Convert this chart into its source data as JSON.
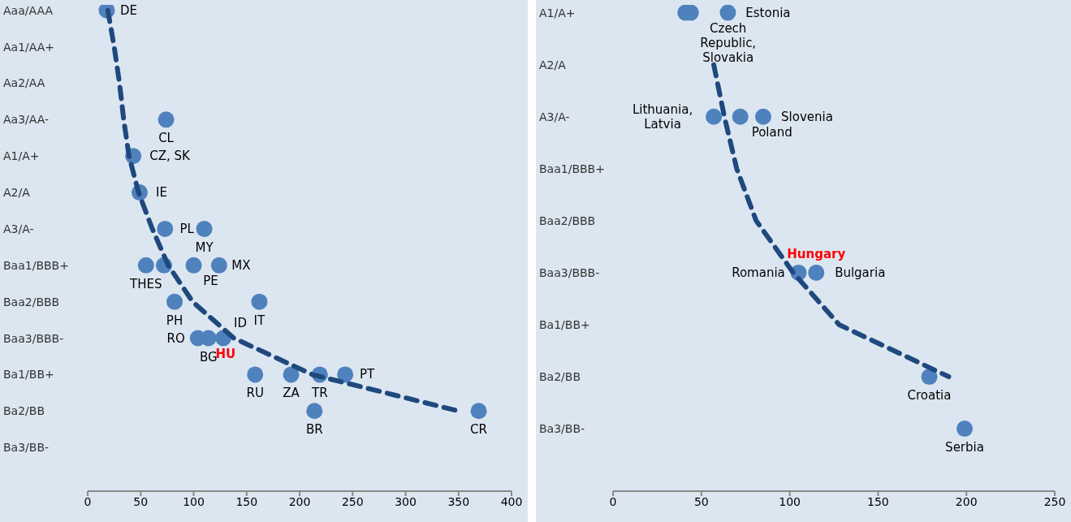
{
  "chart_data": [
    {
      "type": "scatter",
      "orientation": "horizontal",
      "marker": "circle",
      "xlim": [
        0,
        400
      ],
      "xticks": [
        0,
        50,
        100,
        150,
        200,
        250,
        300,
        350,
        400
      ],
      "categories": [
        "Aaa/AAA",
        "Aa1/AA+",
        "Aa2/AA",
        "Aa3/AA-",
        "A1/A+",
        "A2/A",
        "A3/A-",
        "Baa1/BBB+",
        "Baa2/BBB",
        "Baa3/BBB-",
        "Ba1/BB+",
        "Ba2/BB",
        "Ba3/BB-"
      ],
      "series": [
        {
          "color": "#4f81bd",
          "values": [
            18,
            null,
            null,
            74,
            43,
            49,
            73,
            55,
            82,
            104,
            158,
            214,
            null
          ]
        },
        {
          "color": "#4f81bd",
          "values": [
            null,
            null,
            null,
            null,
            null,
            null,
            110,
            72,
            162,
            128,
            192,
            369,
            null
          ]
        },
        {
          "color": "#4f81bd",
          "values": [
            null,
            null,
            null,
            null,
            null,
            null,
            null,
            100,
            null,
            null,
            219,
            null,
            null
          ]
        },
        {
          "color": "#4f81bd",
          "values": [
            null,
            null,
            null,
            null,
            null,
            null,
            null,
            124,
            null,
            null,
            243,
            null,
            null
          ]
        },
        {
          "name": "HU",
          "color": "#4f81bd",
          "values": [
            null,
            null,
            null,
            null,
            null,
            null,
            null,
            null,
            null,
            114,
            null,
            null,
            null
          ]
        },
        {
          "type": "line",
          "color": "#1f497d",
          "line_style": "dashed",
          "marker": "none",
          "values": [
            19,
            25,
            30,
            34,
            39,
            48,
            61,
            76,
            99,
            138,
            212,
            350,
            null
          ]
        }
      ],
      "annotations": [
        {
          "text": "DE",
          "x": 18,
          "y": "Aaa/AAA"
        },
        {
          "text": "CL",
          "x": 74,
          "y": "Aa3/AA-"
        },
        {
          "text": "CZ, SK",
          "x": 43,
          "y": "A1/A+"
        },
        {
          "text": "IE",
          "x": 49,
          "y": "A2/A"
        },
        {
          "text": "PL",
          "x": 73,
          "y": "A3/A-"
        },
        {
          "text": "MY",
          "x": 110,
          "y": "A3/A-"
        },
        {
          "text": "PE",
          "x": 100,
          "y": "Baa1/BBB+"
        },
        {
          "text": "MX",
          "x": 124,
          "y": "Baa1/BBB+"
        },
        {
          "text": "THES",
          "x": 55,
          "y": "Baa1/BBB+"
        },
        {
          "text": "IT",
          "x": 162,
          "y": "Baa2/BBB"
        },
        {
          "text": "PH",
          "x": 82,
          "y": "Baa2/BBB"
        },
        {
          "text": "BG",
          "x": 114,
          "y": "Baa3/BBB-"
        },
        {
          "text": "ID",
          "x": 128,
          "y": "Baa3/BBB-"
        },
        {
          "text": "RO",
          "x": 104,
          "y": "Baa3/BBB-"
        },
        {
          "text": "TR",
          "x": 219,
          "y": "Ba1/BB+"
        },
        {
          "text": "PT",
          "x": 243,
          "y": "Ba1/BB+"
        },
        {
          "text": "RU",
          "x": 158,
          "y": "Ba1/BB+"
        },
        {
          "text": "ZA",
          "x": 192,
          "y": "Ba1/BB+"
        },
        {
          "text": "BR",
          "x": 214,
          "y": "Ba2/BB"
        },
        {
          "text": "CR",
          "x": 369,
          "y": "Ba2/BB"
        }
      ]
    },
    {
      "type": "scatter",
      "orientation": "horizontal",
      "marker": "circle",
      "xlim": [
        0,
        250
      ],
      "xticks": [
        0,
        50,
        100,
        150,
        200,
        250
      ],
      "categories": [
        "A1/A+",
        "A2/A",
        "A3/A-",
        "Baa1/BBB+",
        "Baa2/BBB",
        "Baa3/BBB-",
        "Ba1/BB+",
        "Ba2/BB",
        "Ba3/BB-"
      ],
      "series": [
        {
          "color": "#4f81bd",
          "values": [
            41,
            null,
            57,
            null,
            null,
            105,
            null,
            179,
            199
          ]
        },
        {
          "color": "#4f81bd",
          "values": [
            44,
            null,
            72,
            null,
            null,
            null,
            null,
            null,
            null
          ]
        },
        {
          "color": "#4f81bd",
          "values": [
            65,
            null,
            85,
            null,
            null,
            null,
            null,
            null,
            null
          ]
        },
        {
          "name": "Hungary",
          "color": "#4f81bd",
          "values": [
            null,
            null,
            null,
            null,
            null,
            115,
            null,
            null,
            null
          ]
        },
        {
          "type": "line",
          "color": "#1f497d",
          "line_style": "dashed",
          "marker": "none",
          "values": [
            null,
            57,
            63,
            70,
            81,
            102,
            128,
            190,
            null
          ]
        }
      ],
      "annotations": [
        {
          "text": "Czech Republic, Slovakia",
          "x": 41,
          "y": "A1/A+"
        },
        {
          "text": "Estonia",
          "x": 65,
          "y": "A1/A+"
        },
        {
          "text": "Slovenia",
          "x": 85,
          "y": "A3/A-"
        },
        {
          "text": "Lithuania, Latvia",
          "x": 57,
          "y": "A3/A-"
        },
        {
          "text": "Poland",
          "x": 72,
          "y": "A3/A-"
        },
        {
          "text": "Bulgaria",
          "x": 115,
          "y": "Baa3/BBB-"
        },
        {
          "text": "Romania",
          "x": 105,
          "y": "Baa3/BBB-"
        },
        {
          "text": "Croatia",
          "x": 179,
          "y": "Ba2/BB"
        },
        {
          "text": "Serbia",
          "x": 199,
          "y": "Ba3/BB-"
        }
      ]
    }
  ]
}
